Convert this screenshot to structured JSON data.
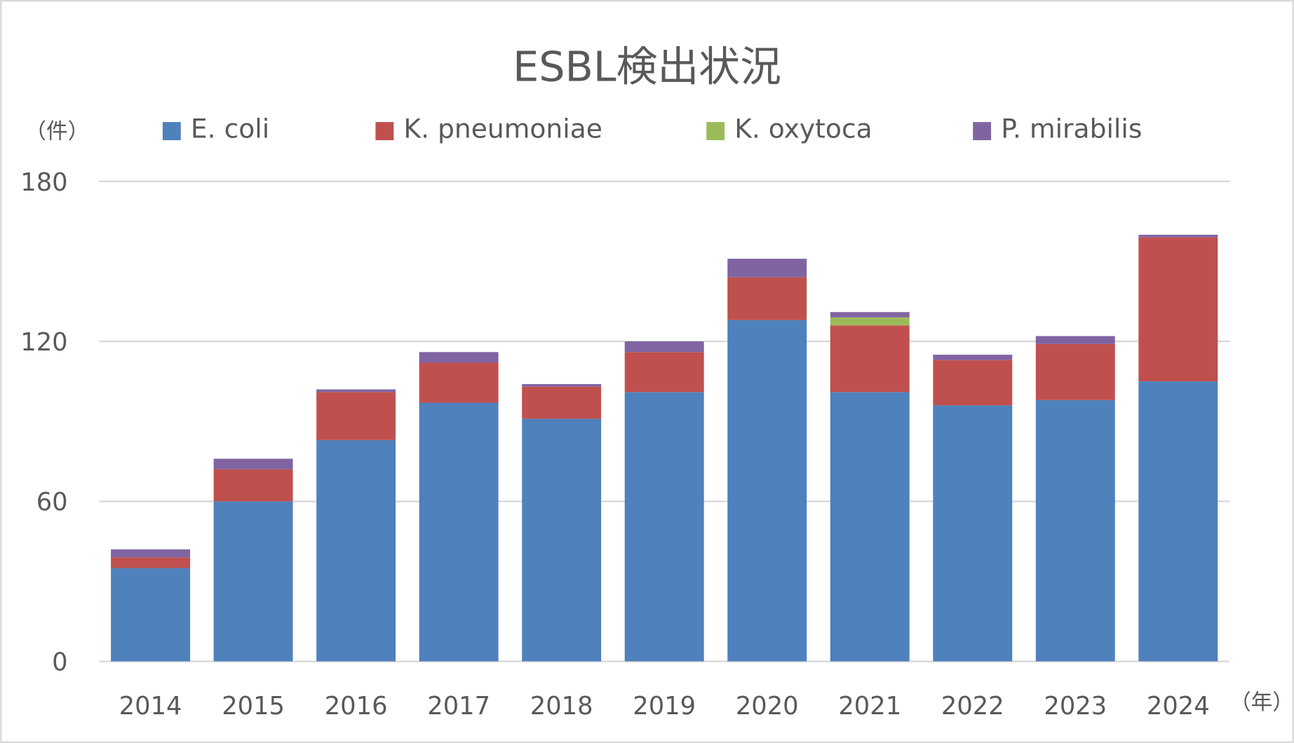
{
  "chart_data": {
    "type": "bar",
    "stacked": true,
    "title": "ESBL検出状況",
    "ylabel": "（件）",
    "xlabel": "（年）",
    "ylim": [
      0,
      180
    ],
    "yticks": [
      0,
      60,
      120,
      180
    ],
    "grid": true,
    "legend_position": "top",
    "categories": [
      "2014",
      "2015",
      "2016",
      "2017",
      "2018",
      "2019",
      "2020",
      "2021",
      "2022",
      "2023",
      "2024"
    ],
    "series": [
      {
        "name": "E. coli",
        "color": "#4f81bd",
        "values": [
          35,
          60,
          83,
          97,
          91,
          101,
          128,
          101,
          96,
          98,
          105
        ]
      },
      {
        "name": "K. pneumoniae",
        "color": "#c0504d",
        "values": [
          4,
          12,
          18,
          15,
          12,
          15,
          16,
          25,
          17,
          21,
          54
        ]
      },
      {
        "name": "K. oxytoca",
        "color": "#9bbb59",
        "values": [
          0,
          0,
          0,
          0,
          0,
          0,
          0,
          3,
          0,
          0,
          0
        ]
      },
      {
        "name": "P. mirabilis",
        "color": "#8064a2",
        "values": [
          3,
          4,
          1,
          4,
          1,
          4,
          7,
          2,
          2,
          3,
          1
        ]
      }
    ]
  }
}
